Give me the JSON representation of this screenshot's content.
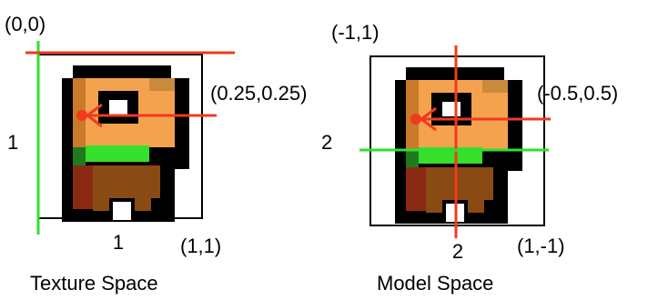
{
  "panels": [
    {
      "title": "Texture Space",
      "corner_top": "(0,0)",
      "corner_bottom": "(1,1)",
      "side_label": "1",
      "bottom_label": "1",
      "point_label": "(0.25,0.25)"
    },
    {
      "title": "Model Space",
      "corner_top": "(-1,1)",
      "corner_bottom": "(1,-1)",
      "side_label": "2",
      "bottom_label": "2",
      "point_label": "(-0.5,0.5)"
    }
  ]
}
